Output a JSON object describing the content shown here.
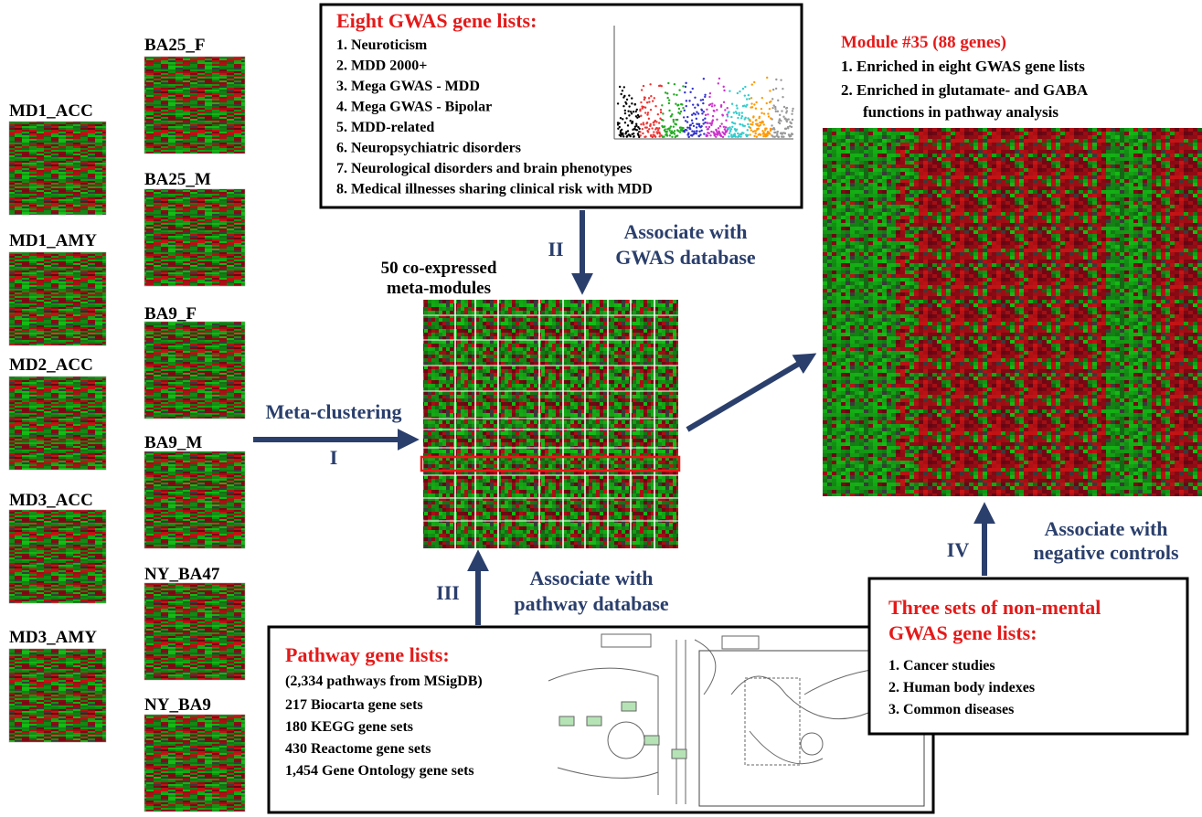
{
  "datasets": {
    "column1": [
      "MD1_ACC",
      "MD1_AMY",
      "MD2_ACC",
      "MD3_ACC",
      "MD3_AMY"
    ],
    "column2": [
      "BA25_F",
      "BA25_M",
      "BA9_F",
      "BA9_M",
      "NY_BA47",
      "NY_BA9"
    ]
  },
  "steps": {
    "i": {
      "numeral": "I",
      "label": "Meta-clustering"
    },
    "ii": {
      "numeral": "II",
      "label": [
        "Associate with",
        "GWAS database"
      ]
    },
    "iii": {
      "numeral": "III",
      "label": [
        "Associate with",
        "pathway database"
      ]
    },
    "iv": {
      "numeral": "IV",
      "label": [
        "Associate with",
        "negative controls"
      ]
    }
  },
  "meta_modules": {
    "label": [
      "50 co-expressed",
      "meta-modules"
    ]
  },
  "gwas_box": {
    "title": "Eight GWAS gene lists:",
    "items": [
      "1. Neuroticism",
      "2. MDD 2000+",
      "3. Mega GWAS - MDD",
      "4. Mega GWAS - Bipolar",
      "5. MDD-related",
      "6. Neuropsychiatric disorders",
      "7. Neurological disorders and brain phenotypes",
      "8. Medical illnesses sharing clinical risk with MDD"
    ]
  },
  "module": {
    "title": "Module #35 (88 genes)",
    "items": [
      "1. Enriched in eight GWAS gene lists",
      "2. Enriched in glutamate- and GABA",
      "functions in pathway analysis"
    ]
  },
  "pathway_box": {
    "title": "Pathway gene lists:",
    "subtitle": "(2,334 pathways from MSigDB)",
    "items": [
      "217 Biocarta gene sets",
      "180 KEGG gene sets",
      "430 Reactome gene sets",
      "1,454 Gene Ontology gene sets"
    ]
  },
  "negative_box": {
    "title": [
      "Three sets of non-mental",
      "GWAS gene lists:"
    ],
    "items": [
      "1. Cancer studies",
      "2. Human body indexes",
      "3. Common diseases"
    ]
  }
}
